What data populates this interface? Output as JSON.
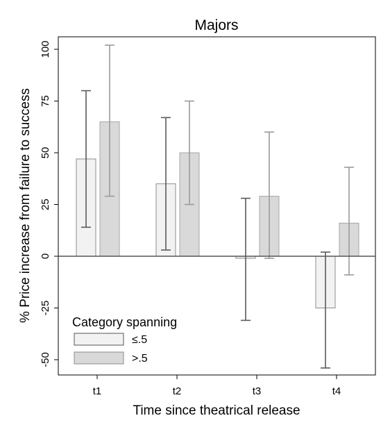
{
  "chart_data": {
    "type": "bar",
    "title": "Majors",
    "xlabel": "Time since theatrical release",
    "ylabel": "% Price increase from failure to success",
    "categories": [
      "t1",
      "t2",
      "t3",
      "t4"
    ],
    "ylim": [
      -55,
      105
    ],
    "yticks": [
      -50,
      -25,
      0,
      25,
      50,
      75,
      100
    ],
    "ytick_labels": [
      "-50",
      "-25",
      "0",
      "25",
      "50",
      "75",
      "100"
    ],
    "grid": false,
    "legend": {
      "title": "Category spanning",
      "position": "bottom-left"
    },
    "series": [
      {
        "name": "≤.5",
        "color": "#f2f2f2",
        "edge_color": "#8c8c8c",
        "errorbar_color": "#5a5a5a",
        "values": [
          47,
          35,
          -1,
          -25
        ],
        "ci_low": [
          14,
          3,
          -31,
          -54
        ],
        "ci_high": [
          80,
          67,
          28,
          2
        ]
      },
      {
        "name": ">.5",
        "color": "#d9d9d9",
        "edge_color": "#a6a6a6",
        "errorbar_color": "#9a9a9a",
        "values": [
          65,
          50,
          29,
          16
        ],
        "ci_low": [
          29,
          25,
          -1,
          -9
        ],
        "ci_high": [
          102,
          75,
          60,
          43
        ]
      }
    ]
  }
}
